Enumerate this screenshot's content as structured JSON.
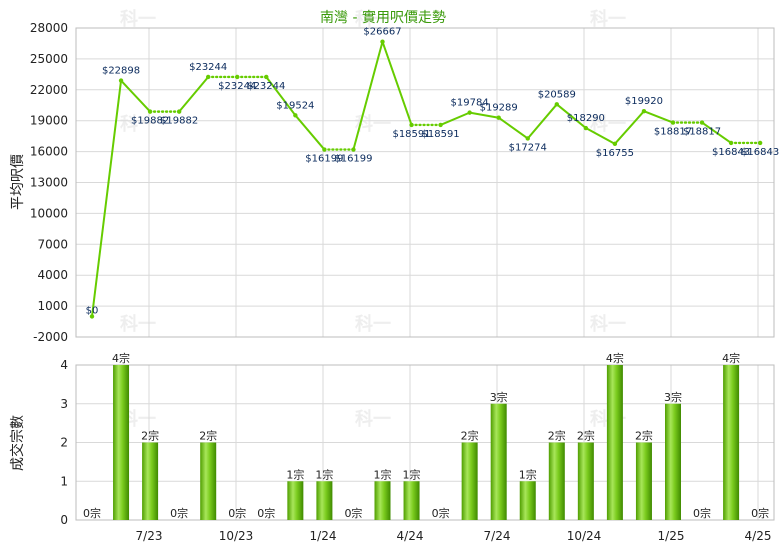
{
  "chart_data": [
    {
      "type": "line",
      "title": "南灣 - 實用呎價走勢",
      "ylabel": "平均呎價",
      "ylim": [
        -2000,
        28000
      ],
      "yticks": [
        -2000,
        1000,
        4000,
        7000,
        10000,
        13000,
        16000,
        19000,
        22000,
        25000,
        28000
      ],
      "grid": true,
      "color": "#66cc00",
      "x_tick_labels": [
        "7/23",
        "10/23",
        "1/24",
        "4/24",
        "7/24",
        "10/24",
        "1/25",
        "4/25"
      ],
      "series": [
        {
          "values": [
            0,
            22898,
            19882,
            19882,
            23244,
            23244,
            23244,
            19524,
            16199,
            16199,
            26667,
            18591,
            18591,
            19784,
            19289,
            17274,
            20589,
            18290,
            16755,
            19920,
            18817,
            18817,
            16843,
            16843
          ],
          "labels": [
            "$0",
            "$22898",
            "$19882",
            "$19882",
            "$23244",
            "$23244",
            "$23244",
            "$19524",
            "$16199",
            "$16199",
            "$26667",
            "$18591",
            "$18591",
            "$19784",
            "$19289",
            "$17274",
            "$20589",
            "$18290",
            "$16755",
            "$19920",
            "$18817",
            "$18817",
            "$16843",
            "$16843"
          ],
          "dotted_segments": [
            2,
            4,
            5,
            8,
            11,
            20,
            22
          ]
        }
      ]
    },
    {
      "type": "bar",
      "ylabel": "成交宗數",
      "ylim": [
        0,
        4
      ],
      "yticks": [
        0,
        1,
        2,
        3,
        4
      ],
      "grid": true,
      "color": "#66cc00",
      "x_tick_labels": [
        "7/23",
        "10/23",
        "1/24",
        "4/24",
        "7/24",
        "10/24",
        "1/25",
        "4/25"
      ],
      "values": [
        0,
        4,
        2,
        0,
        2,
        0,
        0,
        1,
        1,
        0,
        1,
        1,
        0,
        2,
        3,
        1,
        2,
        2,
        4,
        2,
        3,
        0,
        4,
        0
      ],
      "labels": [
        "0宗",
        "4宗",
        "2宗",
        "0宗",
        "2宗",
        "0宗",
        "0宗",
        "1宗",
        "1宗",
        "0宗",
        "1宗",
        "1宗",
        "0宗",
        "2宗",
        "3宗",
        "1宗",
        "2宗",
        "2宗",
        "4宗",
        "2宗",
        "3宗",
        "0宗",
        "4宗",
        "0宗"
      ]
    }
  ],
  "watermark": "科一"
}
